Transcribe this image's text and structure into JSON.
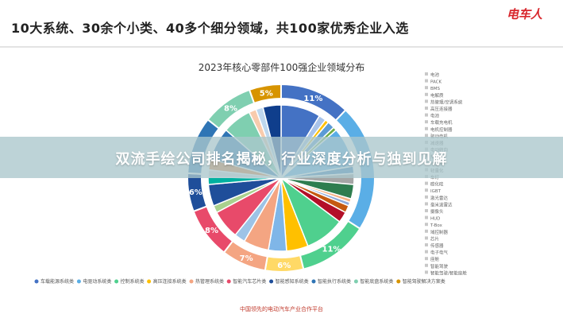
{
  "header": {
    "title": "10大系统、30余个小类、40多个细分领域，共100家优秀企业入选",
    "logo": "电车人"
  },
  "banner": {
    "text": "双流手绘公司排名揭秘，行业深度分析与独到见解"
  },
  "footer": {
    "text": "中国领先的电动汽车产业合作平台"
  },
  "colors": {
    "header_logo": "#d8262c",
    "banner_bg": "#aac6cc"
  },
  "chart_data": {
    "type": "pie",
    "title": "2023年核心零部件100强企业领域分布",
    "slices": [
      {
        "value": 11,
        "label": "11%",
        "color": "#4472c4"
      },
      {
        "value": 2,
        "label": "",
        "color": "#a9c4ea"
      },
      {
        "value": 1,
        "label": "",
        "color": "#ffc000"
      },
      {
        "value": 2,
        "label": "",
        "color": "#5b9bd5"
      },
      {
        "value": 1,
        "label": "",
        "color": "#70ad47"
      },
      {
        "value": 11,
        "label": "",
        "color": "#5aaee6"
      },
      {
        "value": 2,
        "label": "",
        "color": "#2e75b6"
      },
      {
        "value": 3,
        "label": "",
        "color": "#a5a5a5"
      },
      {
        "value": 4,
        "label": "",
        "color": "#2e7d4f"
      },
      {
        "value": 1,
        "label": "",
        "color": "#f4b183"
      },
      {
        "value": 1,
        "label": "",
        "color": "#8faadc"
      },
      {
        "value": 2,
        "label": "",
        "color": "#c55a11"
      },
      {
        "value": 3,
        "label": "",
        "color": "#b30f28"
      },
      {
        "value": 11,
        "label": "11%",
        "color": "#4fd08e"
      },
      {
        "value": 6,
        "label": "6%",
        "color": "#ffc000"
      },
      {
        "value": 5,
        "label": "",
        "color": "#7fb6e8"
      },
      {
        "value": 7,
        "label": "7%",
        "color": "#f4a582"
      },
      {
        "value": 3,
        "label": "",
        "color": "#9dc3e6"
      },
      {
        "value": 8,
        "label": "8%",
        "color": "#e84a6a"
      },
      {
        "value": 2,
        "label": "",
        "color": "#a9d18e"
      },
      {
        "value": 6,
        "label": "6%",
        "color": "#1f4e9a"
      },
      {
        "value": 2,
        "label": "",
        "color": "#00b0a0"
      },
      {
        "value": 2,
        "label": "",
        "color": "#d9d9d9"
      },
      {
        "value": 3,
        "label": "",
        "color": "#ed7d31"
      },
      {
        "value": 9,
        "label": "",
        "color": "#2f75b5"
      },
      {
        "value": 8,
        "label": "8%",
        "color": "#7fcfb0"
      },
      {
        "value": 2,
        "label": "",
        "color": "#f8cbad"
      },
      {
        "value": 2,
        "label": "",
        "color": "#bdd7ee"
      },
      {
        "value": 5,
        "label": "5%",
        "color": "#0f3e8c"
      }
    ],
    "outer_ring": [
      {
        "value": 11,
        "label": "11%",
        "color": "#4472c4"
      },
      {
        "value": 20,
        "label": "",
        "color": "#5aaee6"
      },
      {
        "value": 11,
        "label": "11%",
        "color": "#4fd08e"
      },
      {
        "value": 6,
        "label": "6%",
        "color": "#ffd966"
      },
      {
        "value": 7,
        "label": "7%",
        "color": "#f4a582"
      },
      {
        "value": 8,
        "label": "8%",
        "color": "#e84a6a"
      },
      {
        "value": 6,
        "label": "6%",
        "color": "#1f4e9a"
      },
      {
        "value": 9,
        "label": "",
        "color": "#2f75b5"
      },
      {
        "value": 8,
        "label": "8%",
        "color": "#7fcfb0"
      },
      {
        "value": 5,
        "label": "5%",
        "color": "#d79400"
      }
    ],
    "right_labels": [
      "电池",
      "PACK",
      "BMS",
      "电解质",
      "热管理/空调系统",
      "高压连接器",
      "电池",
      "车载充电机",
      "电机控制器",
      "驱动电机",
      "减速器",
      "电动转向",
      "热泵",
      "电驱动",
      "轻量化",
      "车灯",
      "碳化硅",
      "IGBT",
      "激光雷达",
      "毫米波雷达",
      "摄像头",
      "HUD",
      "T-Box",
      "域控制器",
      "芯片",
      "传感器",
      "电子电气",
      "座舱",
      "智能驾驶",
      "智能驾驶/智能座舱"
    ],
    "legend": [
      {
        "label": "车载能源系统类",
        "color": "#4472c4"
      },
      {
        "label": "电驱动系统类",
        "color": "#5aaee6"
      },
      {
        "label": "控制系统类",
        "color": "#4fd08e"
      },
      {
        "label": "高压连接系统类",
        "color": "#ffc000"
      },
      {
        "label": "热管理系统类",
        "color": "#f4a582"
      },
      {
        "label": "智能汽车芯片类",
        "color": "#e84a6a"
      },
      {
        "label": "智能感知系统类",
        "color": "#1f4e9a"
      },
      {
        "label": "智能执行系统类",
        "color": "#2f75b5"
      },
      {
        "label": "智能底盘系统类",
        "color": "#7fcfb0"
      },
      {
        "label": "智能驾驶解决方案类",
        "color": "#d79400"
      }
    ]
  }
}
